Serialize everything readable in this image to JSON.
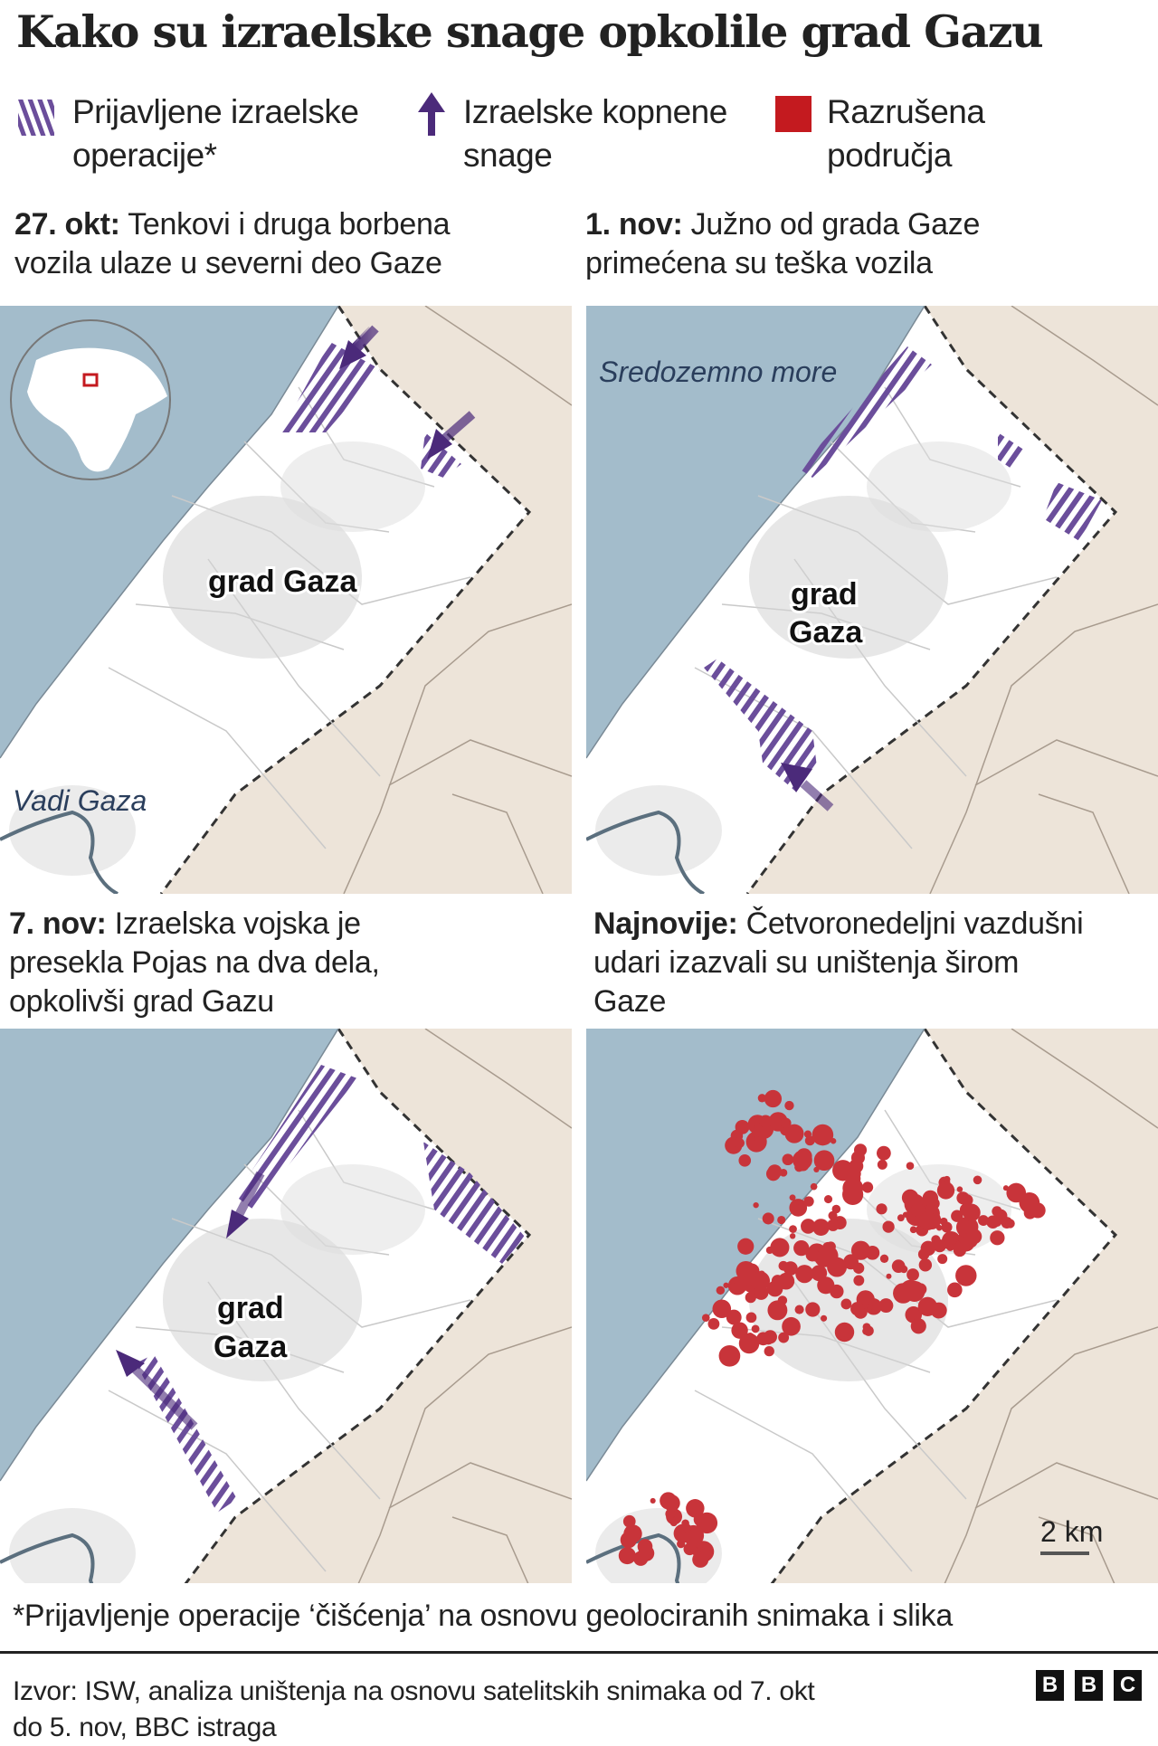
{
  "title": "Kako su izraelske snage opkolile grad Gazu",
  "legend": {
    "operations": {
      "line1": "Prijavljene izraelske",
      "line2": "operacije*",
      "icon": "purple-hatch",
      "color": "#6b4e9b"
    },
    "forces": {
      "line1": "Izraelske kopnene",
      "line2": "snage",
      "icon": "arrow-up",
      "color": "#4b2a7a"
    },
    "destroyed": {
      "line1": "Razrušena",
      "line2": "područja",
      "icon": "red-square",
      "color": "#c41a1f"
    }
  },
  "panels": [
    {
      "date": "27. okt:",
      "text_line1": "Tenkovi i druga borbena",
      "text_line2": "vozila ulaze u severni deo Gaze",
      "labels": {
        "city": "grad Gaza",
        "wadi": "Vadi Gaza"
      }
    },
    {
      "date": "1. nov:",
      "text_line1": "Južno od grada Gaze",
      "text_line2": "primećena su teška vozila",
      "labels": {
        "sea": "Sredozemno more",
        "city1": "grad",
        "city2": "Gaza"
      }
    },
    {
      "date": "7. nov:",
      "text_line1": "Izraelska vojska je",
      "text_line2": "presekla Pojas na dva dela,",
      "text_line3": "opkolivši grad Gazu",
      "labels": {
        "city1": "grad",
        "city2": "Gaza"
      }
    },
    {
      "date": "Najnovije:",
      "text_line1": "Četvoronedeljni vazdušni",
      "text_line2": "udari izazvali su uništenja širom",
      "text_line3": "Gaze",
      "labels": {
        "scale": "2 km"
      }
    }
  ],
  "colors": {
    "sea": "#a3bccb",
    "land": "#ede4d9",
    "strip": "#ffffff",
    "hatch": "#6b4e9b",
    "arrow": "#4b2a7a",
    "damage": "#c8343a"
  },
  "footnote": "*Prijavljenje operacije ‘čišćenja’ na osnovu geolociranih snimaka i slika",
  "source": {
    "line1": "Izvor: ISW, analiza uništenja na osnovu satelitskih snimaka od 7. okt",
    "line2": "do 5. nov, BBC istraga"
  },
  "logo": [
    "B",
    "B",
    "C"
  ]
}
